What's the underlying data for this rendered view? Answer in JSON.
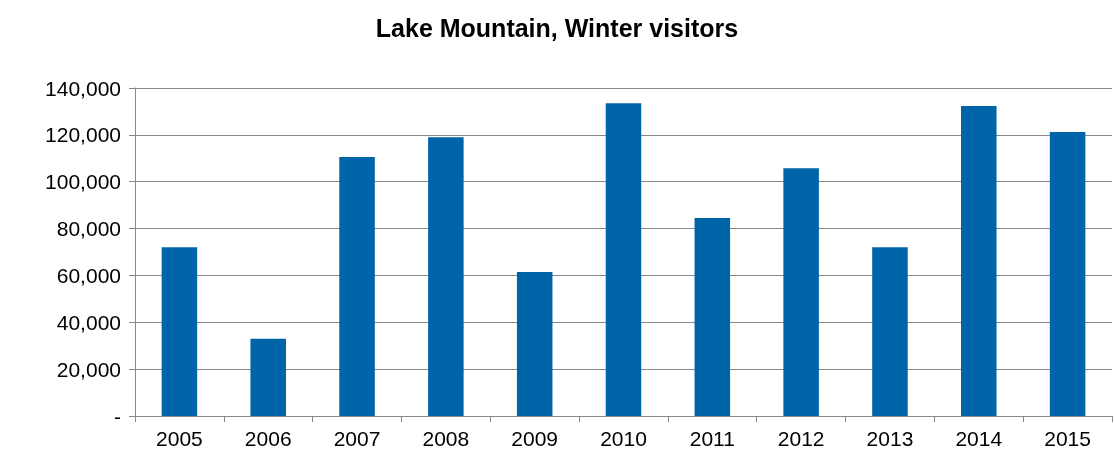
{
  "chart_data": {
    "type": "bar",
    "title": "Lake Mountain, Winter visitors",
    "categories": [
      "2005",
      "2006",
      "2007",
      "2008",
      "2009",
      "2010",
      "2011",
      "2012",
      "2013",
      "2014",
      "2015"
    ],
    "values": [
      72000,
      33000,
      110500,
      119000,
      61500,
      133500,
      84500,
      105800,
      72000,
      132300,
      121200
    ],
    "color": "#0064a8",
    "ylim": [
      0,
      140000
    ],
    "yticks": [
      {
        "value": 0,
        "label": "-"
      },
      {
        "value": 20000,
        "label": "20,000"
      },
      {
        "value": 40000,
        "label": "40,000"
      },
      {
        "value": 60000,
        "label": "60,000"
      },
      {
        "value": 80000,
        "label": "80,000"
      },
      {
        "value": 100000,
        "label": "100,000"
      },
      {
        "value": 120000,
        "label": "120,000"
      },
      {
        "value": 140000,
        "label": "140,000"
      }
    ],
    "grid": "y"
  }
}
